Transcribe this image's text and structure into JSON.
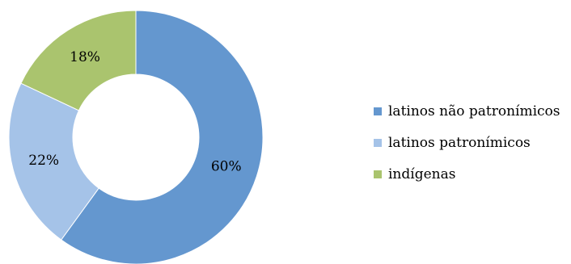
{
  "chart_data": {
    "type": "pie",
    "donut": true,
    "title": "",
    "legend_position": "right",
    "slices": [
      {
        "name": "latinos não patronímicos",
        "value": 60,
        "label": "60%",
        "color": "#6497CF"
      },
      {
        "name": "latinos patronímicos",
        "value": 22,
        "label": "22%",
        "color": "#A5C3E8"
      },
      {
        "name": "indígenas",
        "value": 18,
        "label": "18%",
        "color": "#AAC46E"
      }
    ]
  }
}
